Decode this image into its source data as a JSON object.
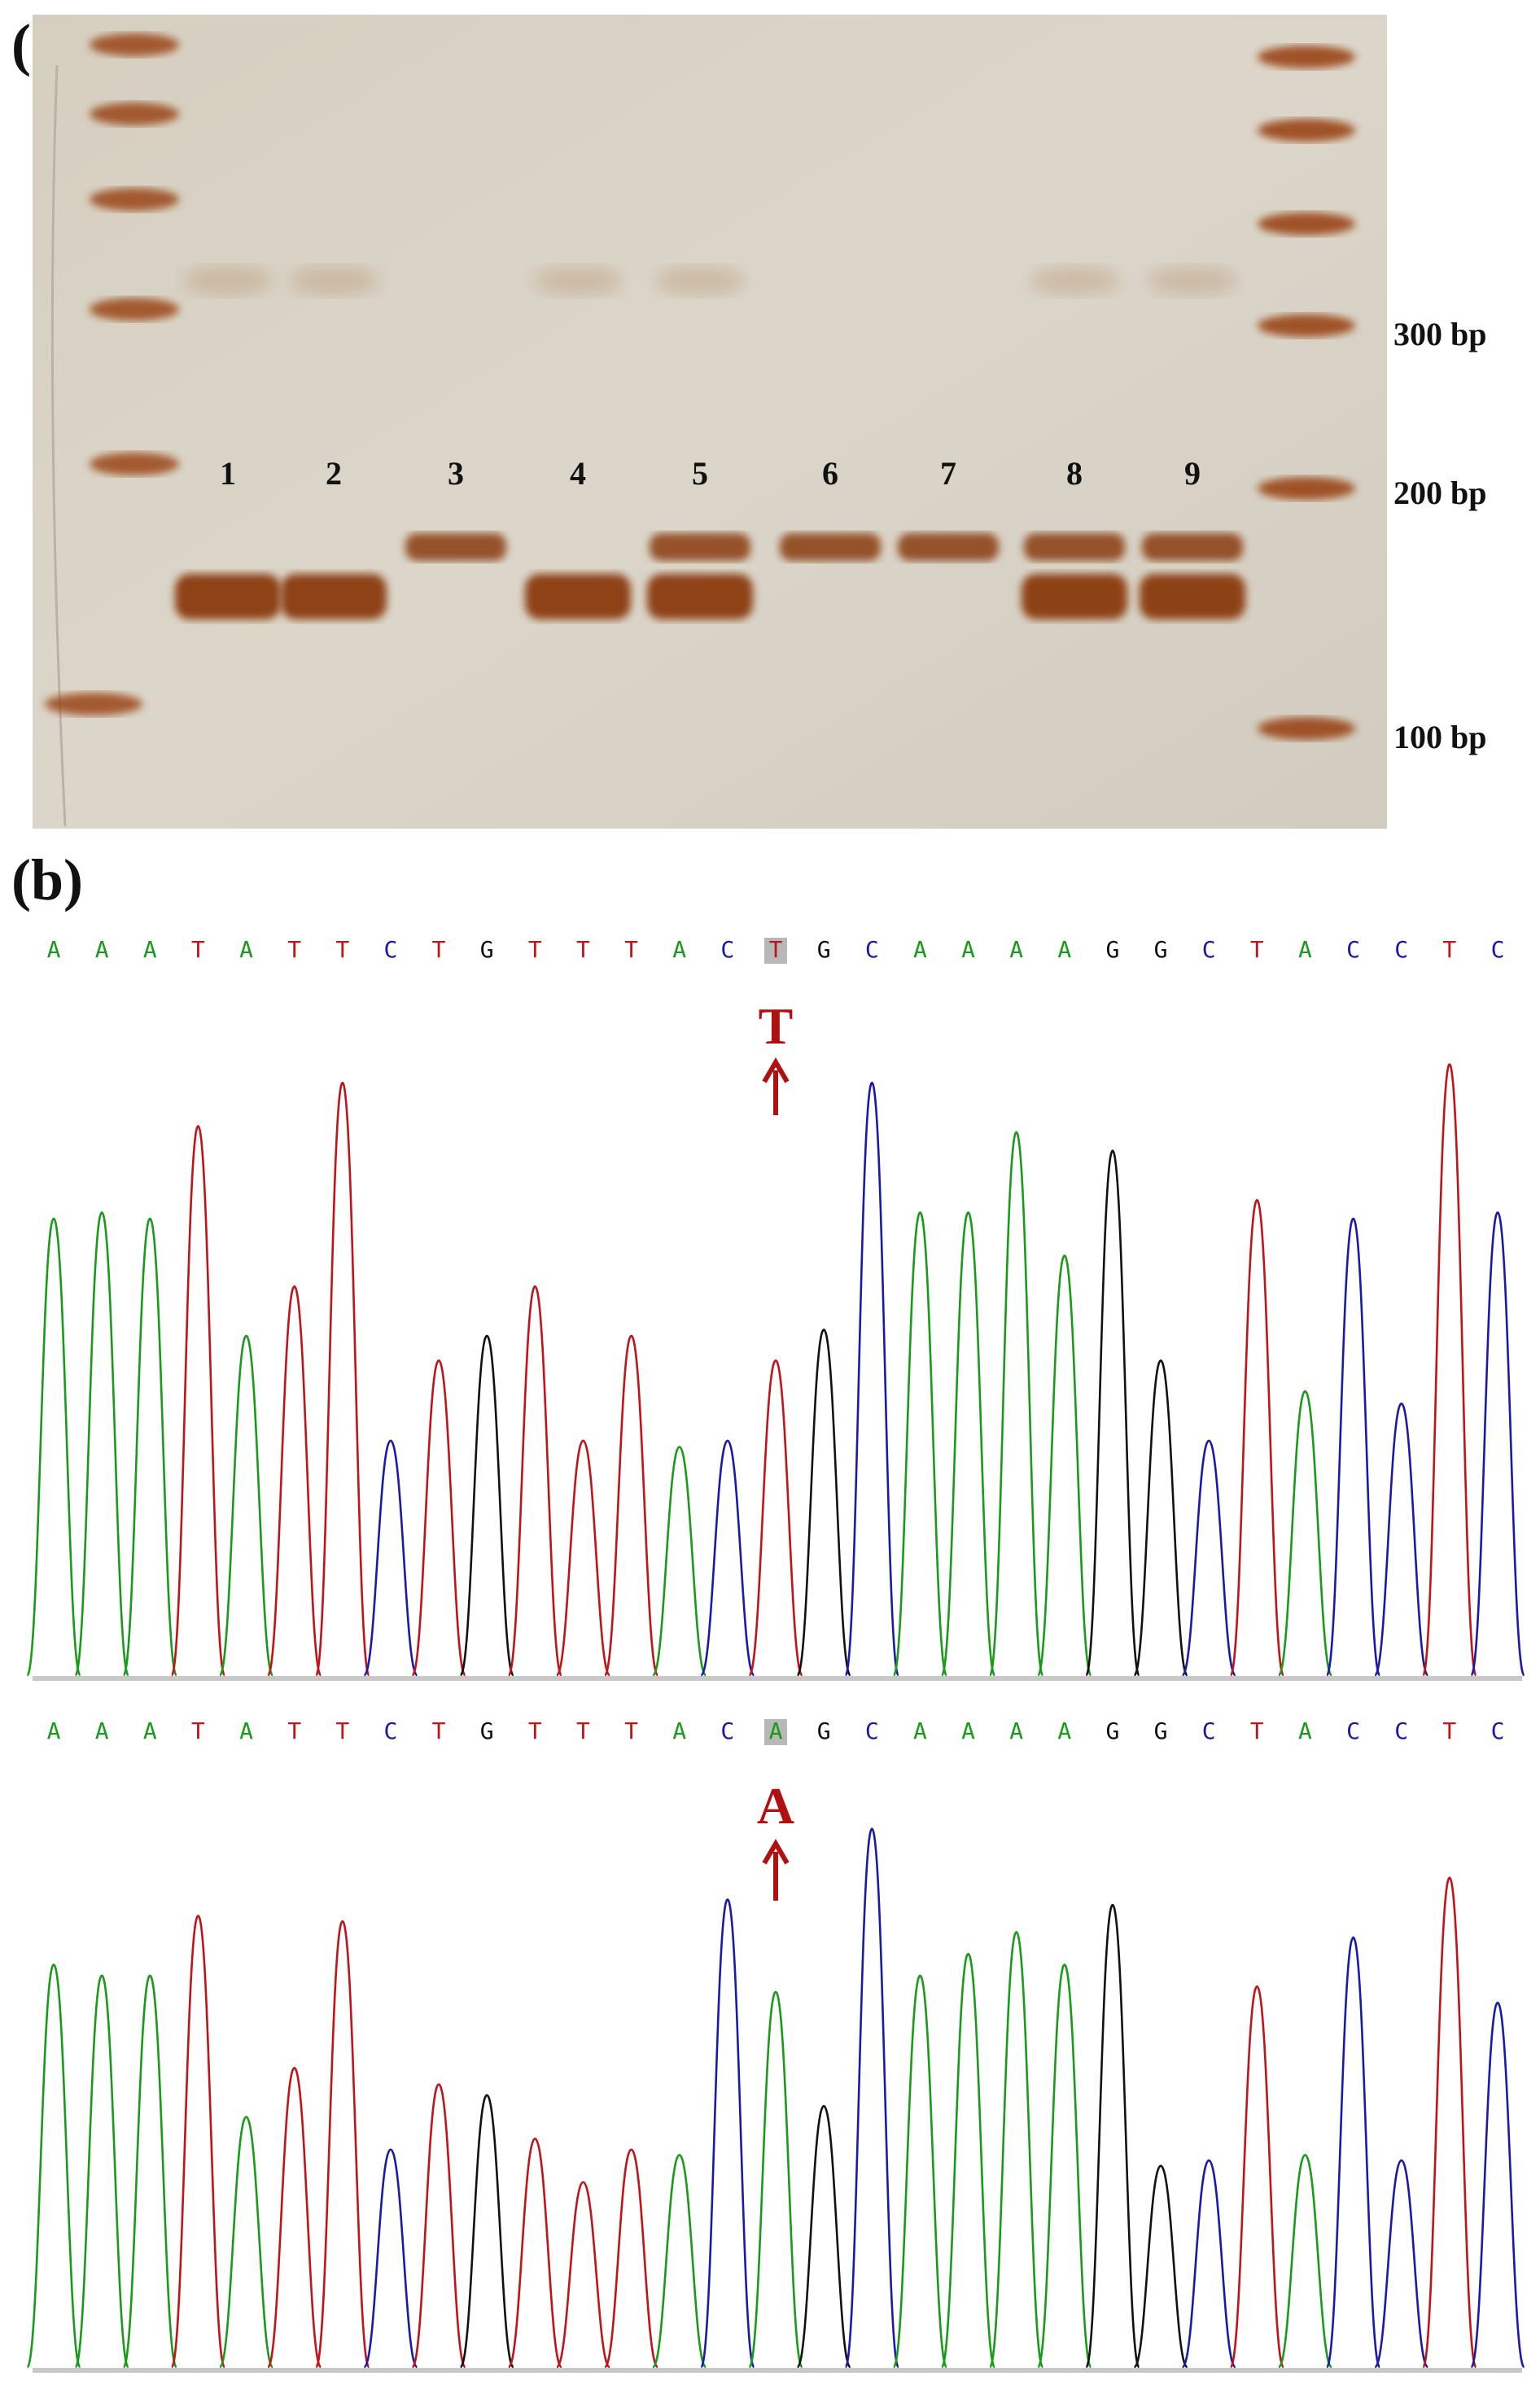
{
  "panel_a": {
    "label": "(a)",
    "lanes": [
      "1",
      "2",
      "3",
      "4",
      "5",
      "6",
      "7",
      "8",
      "9"
    ],
    "size_markers": [
      "300 bp",
      "200 bp",
      "100 bp"
    ],
    "lane_bands": [
      {
        "lane": "1",
        "upper": false,
        "lower": true
      },
      {
        "lane": "2",
        "upper": false,
        "lower": true
      },
      {
        "lane": "3",
        "upper": true,
        "lower": false
      },
      {
        "lane": "4",
        "upper": false,
        "lower": true
      },
      {
        "lane": "5",
        "upper": true,
        "lower": true
      },
      {
        "lane": "6",
        "upper": true,
        "lower": false
      },
      {
        "lane": "7",
        "upper": true,
        "lower": false
      },
      {
        "lane": "8",
        "upper": true,
        "lower": true
      },
      {
        "lane": "9",
        "upper": true,
        "lower": true
      }
    ],
    "colors": {
      "gel": "#d9d3c6",
      "band": "#8a3a10",
      "ladder": "#9a4512"
    }
  },
  "panel_b": {
    "label": "(b)",
    "traces": [
      {
        "sequence": [
          "A",
          "A",
          "A",
          "T",
          "A",
          "T",
          "T",
          "C",
          "T",
          "G",
          "T",
          "T",
          "T",
          "A",
          "C",
          "T",
          "G",
          "C",
          "A",
          "A",
          "A",
          "A",
          "G",
          "G",
          "C",
          "T",
          "A",
          "C",
          "C",
          "T",
          "C"
        ],
        "highlight_index": 15,
        "arrow_label": "T"
      },
      {
        "sequence": [
          "A",
          "A",
          "A",
          "T",
          "A",
          "T",
          "T",
          "C",
          "T",
          "G",
          "T",
          "T",
          "T",
          "A",
          "C",
          "A",
          "G",
          "C",
          "A",
          "A",
          "A",
          "A",
          "G",
          "G",
          "C",
          "T",
          "A",
          "C",
          "C",
          "T",
          "C"
        ],
        "highlight_index": 15,
        "arrow_label": "A"
      }
    ],
    "base_colors": {
      "A": "#1a9a1a",
      "T": "#c0141a",
      "C": "#1a1aa8",
      "G": "#111111"
    },
    "arrow_color": "#b01010"
  }
}
